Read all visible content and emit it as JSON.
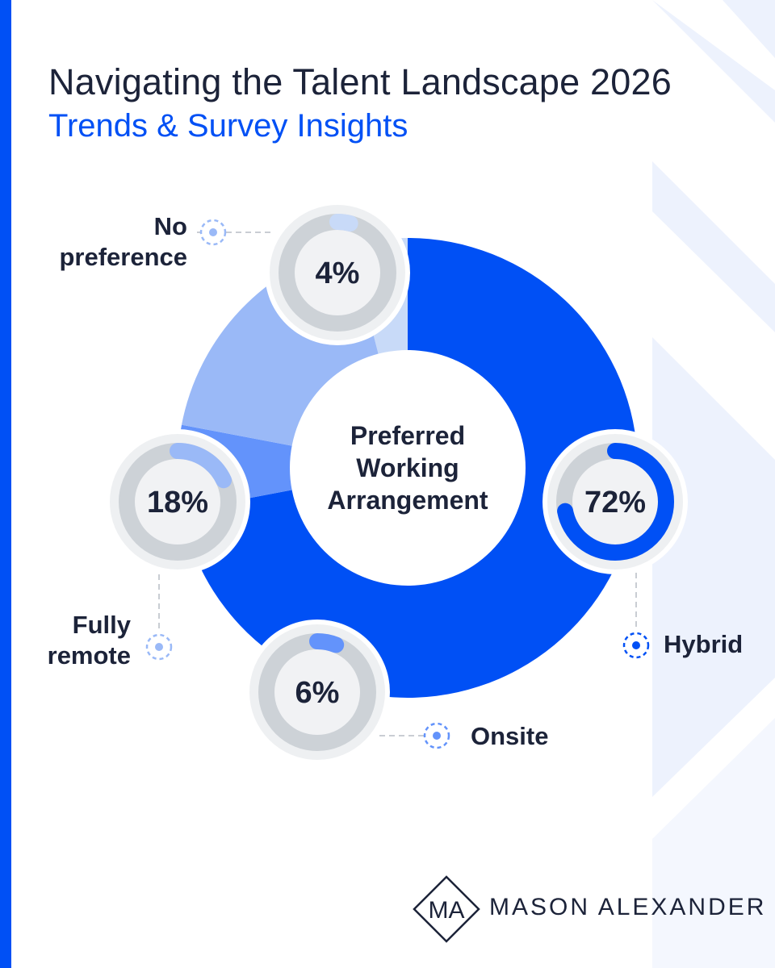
{
  "header": {
    "title": "Navigating the Talent Landscape 2026",
    "subtitle": "Trends & Survey Insights"
  },
  "chart_data": {
    "type": "pie",
    "title": "Preferred Working Arrangement",
    "categories": [
      "Hybrid",
      "Onsite",
      "Fully remote",
      "No preference"
    ],
    "values": [
      72,
      6,
      18,
      4
    ],
    "value_labels": [
      "72%",
      "6%",
      "18%",
      "4%"
    ],
    "label_lines": {
      "hybrid": [
        "Hybrid"
      ],
      "onsite": [
        "Onsite"
      ],
      "remote": [
        "Fully",
        "remote"
      ],
      "nopref": [
        "No",
        "preference"
      ]
    },
    "colors": [
      "#0050f5",
      "#6393fb",
      "#9ab9f7",
      "#c8daf8"
    ],
    "legend": "none"
  },
  "colors": {
    "brand_blue": "#0050f5",
    "text_dark": "#1c2339",
    "deco_light": "#edf2fd",
    "badge_outer": "#eef0f2",
    "badge_ring": "#cdd2d7",
    "badge_inner": "#f1f2f4"
  },
  "brand": {
    "monogram": "MA",
    "name": "MASON ALEXANDER",
    "logo_icon": "diamond-monogram-icon"
  }
}
